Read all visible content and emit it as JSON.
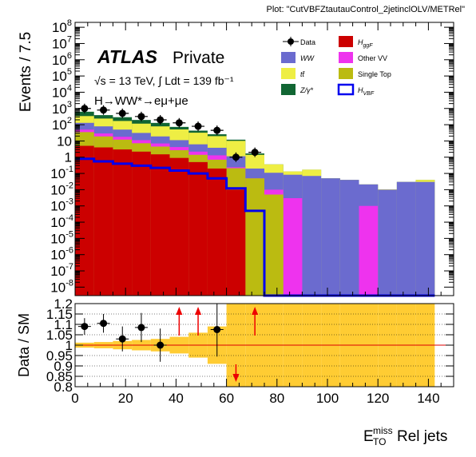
{
  "plot_tag": "Plot: \"CutVBFZtautauControl_2jetinclOLV/METRel\"",
  "atlas": {
    "brand": "ATLAS",
    "status": "Private",
    "energy": "√s = 13 TeV, ∫ Ldt = 139 fb⁻¹",
    "channel": "H→WW*→eμ+μe"
  },
  "colors": {
    "ggF": "#cc0000",
    "WW": "#6b6bcf",
    "OtherVV": "#ee33ee",
    "ttbar": "#eeee44",
    "SingleTop": "#bbbb11",
    "Zgamma": "#116633",
    "VBF": "#0000ee",
    "band": "#ffcc33",
    "ratio_line": "#dd0000"
  },
  "chart_data": [
    {
      "type": "bar",
      "subtype": "stacked-histogram",
      "ylabel": "Events / 7.5",
      "yscale": "log",
      "ylim": [
        3e-09,
        200000000.0
      ],
      "xlim": [
        0,
        150
      ],
      "bin_edges": [
        0,
        7.5,
        15,
        22.5,
        30,
        37.5,
        45,
        52.5,
        60,
        67.5,
        75,
        82.5,
        90,
        97.5,
        105,
        112.5,
        120,
        127.5,
        135,
        142.5
      ],
      "series": [
        {
          "name": "H_ggF",
          "key": "ggF",
          "values": [
            5,
            4,
            3,
            2.2,
            1.5,
            0.9,
            0.5,
            0.2,
            0.01,
            0,
            0,
            0,
            0,
            0,
            0,
            0,
            0,
            0,
            0
          ]
        },
        {
          "name": "Single Top",
          "key": "SingleTop",
          "values": [
            30,
            15,
            9,
            5,
            3,
            1.8,
            0.9,
            0.5,
            0.2,
            0.05,
            0.005,
            0,
            0,
            0,
            0,
            0,
            0,
            0,
            0
          ]
        },
        {
          "name": "Other VV",
          "key": "OtherVV",
          "values": [
            15,
            10,
            6,
            4,
            2.5,
            1.5,
            0.8,
            0.6,
            0.03,
            0,
            0.005,
            0.003,
            0,
            0,
            0,
            0.001,
            0,
            0,
            0
          ]
        },
        {
          "name": "WW",
          "key": "WW",
          "values": [
            80,
            50,
            32,
            20,
            12,
            7,
            4,
            2.5,
            0.9,
            0.15,
            0.1,
            0.08,
            0.07,
            0.05,
            0.04,
            0.02,
            0.01,
            0.03,
            0.03
          ]
        },
        {
          "name": "tt̄",
          "key": "ttbar",
          "values": [
            210,
            160,
            120,
            85,
            60,
            40,
            26,
            16,
            9,
            1.2,
            0.25,
            0.05,
            0.1,
            0,
            0,
            0,
            0.0005,
            0,
            0.0099
          ]
        },
        {
          "name": "Z/γ*",
          "key": "Zgamma",
          "values": [
            290,
            150,
            120,
            80,
            50,
            22,
            11,
            6,
            1.85,
            0.3,
            0,
            0,
            0,
            0,
            0,
            0,
            0,
            0,
            0
          ]
        }
      ],
      "vbf_line": {
        "name": "H_VBF",
        "values": [
          0.8,
          0.55,
          0.4,
          0.3,
          0.22,
          0.15,
          0.1,
          0.05,
          0.012,
          0.0005,
          0,
          0,
          0,
          0,
          0,
          0,
          0,
          0,
          0
        ]
      },
      "data_points": {
        "name": "Data",
        "x": [
          3.75,
          11.25,
          18.75,
          26.25,
          33.75,
          41.25,
          48.75,
          56.25,
          63.75,
          71.25
        ],
        "y": [
          1000,
          800,
          500,
          320,
          200,
          130,
          80,
          45,
          1,
          2
        ]
      },
      "legend": {
        "placement": "top-right",
        "entries": [
          {
            "label": "Data",
            "key": "Data"
          },
          {
            "label": "H",
            "sub": "ggF",
            "key": "ggF"
          },
          {
            "label": "WW",
            "key": "WW"
          },
          {
            "label": "Other VV",
            "key": "OtherVV"
          },
          {
            "label": "tt̄",
            "key": "ttbar"
          },
          {
            "label": "Single Top",
            "key": "SingleTop"
          },
          {
            "label": "Z/γ*",
            "key": "Zgamma"
          },
          {
            "label": "H",
            "sub": "VBF",
            "key": "VBF"
          }
        ]
      },
      "grid": false
    },
    {
      "type": "scatter",
      "subtype": "ratio",
      "ylabel": "Data / SM",
      "xlabel": "E_T^miss Rel jets",
      "ylim": [
        0.8,
        1.2
      ],
      "xlim": [
        0,
        150
      ],
      "yticks": [
        0.8,
        0.85,
        0.9,
        0.95,
        1.0,
        1.05,
        1.1,
        1.15,
        1.2
      ],
      "ytick_labels": [
        "0.8",
        "0.85",
        "0.9",
        "0.95",
        "1",
        "1.05",
        "1.1",
        "1.15",
        "1.2"
      ],
      "xticks": [
        0,
        20,
        40,
        60,
        80,
        100,
        120,
        140
      ],
      "xtick_labels": [
        "0",
        "20",
        "40",
        "60",
        "80",
        "100",
        "120",
        "140"
      ],
      "points": {
        "x": [
          3.75,
          11.25,
          18.75,
          26.25,
          33.75,
          56.25
        ],
        "y": [
          1.09,
          1.105,
          1.03,
          1.085,
          1.0,
          1.075
        ],
        "err": [
          0.04,
          0.045,
          0.06,
          0.07,
          0.08,
          0.13
        ]
      },
      "arrows": [
        {
          "x": 41.25,
          "dir": "up"
        },
        {
          "x": 48.75,
          "dir": "up"
        },
        {
          "x": 63.75,
          "dir": "down"
        },
        {
          "x": 71.25,
          "dir": "up"
        }
      ],
      "band_halfwidth": [
        0.012,
        0.015,
        0.02,
        0.025,
        0.03,
        0.04,
        0.06,
        0.09,
        0.2,
        0.2,
        0.2,
        0.2,
        0.2,
        0.2,
        0.2,
        0.2,
        0.2,
        0.2,
        0.2
      ],
      "grid": true
    }
  ]
}
